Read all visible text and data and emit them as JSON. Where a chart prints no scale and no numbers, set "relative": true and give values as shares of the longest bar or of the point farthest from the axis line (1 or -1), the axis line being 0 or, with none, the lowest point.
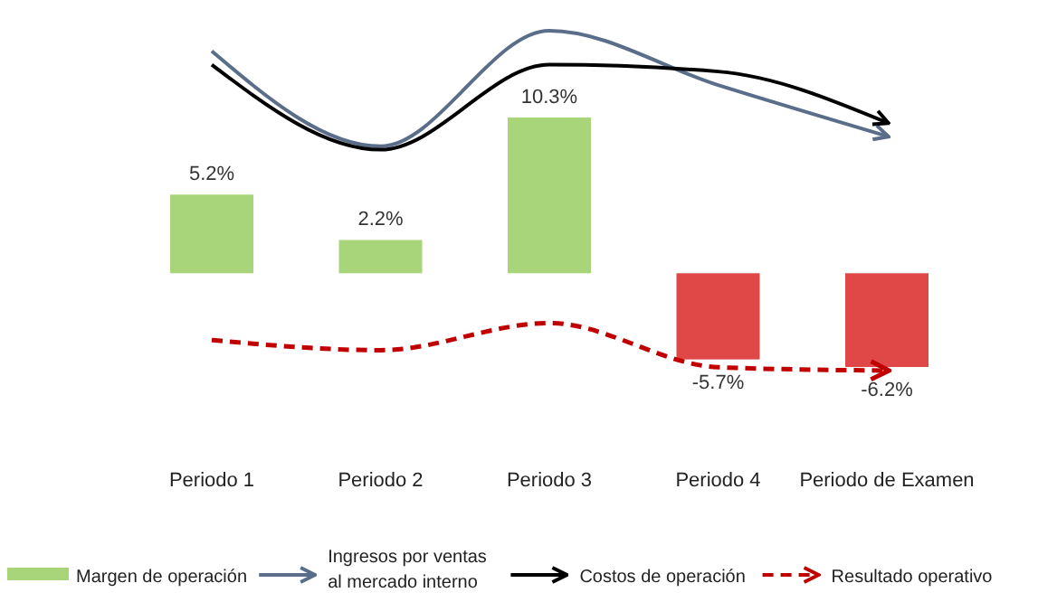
{
  "chart_data": [
    {
      "type": "bar",
      "categories": [
        "Periodo 1",
        "Periodo 2",
        "Periodo 3",
        "Periodo 4",
        "Periodo de Examen"
      ],
      "legend": "bottom",
      "series": [
        {
          "name": "Margen de operación",
          "color": "#a8d57a",
          "colors": [
            "#a8d57a",
            "#a8d57a",
            "#a8d57a",
            "#e04848",
            "#e04848"
          ],
          "values": [
            5.2,
            2.2,
            10.3,
            -5.7,
            -6.2
          ],
          "value_labels": [
            "5.2%",
            "2.2%",
            "10.3%",
            "-5.7%",
            "-6.2%"
          ]
        }
      ]
    },
    {
      "type": "line",
      "relative": true,
      "categories": [
        null,
        null,
        null,
        null,
        null
      ],
      "legend": "bottom",
      "series": [
        {
          "name": "Ingresos por ventas al mercado interno",
          "color": "#5a6e8a",
          "line_style": "solid",
          "values": [
            0.94,
            0.66,
            1,
            0.84,
            0.69
          ]
        },
        {
          "name": "Costos de operación",
          "color": "#000000",
          "line_style": "solid",
          "values": [
            0.9,
            0.65,
            0.9,
            0.88,
            0.73
          ]
        },
        {
          "name": "Resultado operativo",
          "color": "#c00000",
          "line_style": "dashed",
          "values": [
            0.09,
            0.06,
            0.14,
            0.01,
            0
          ]
        }
      ]
    }
  ]
}
